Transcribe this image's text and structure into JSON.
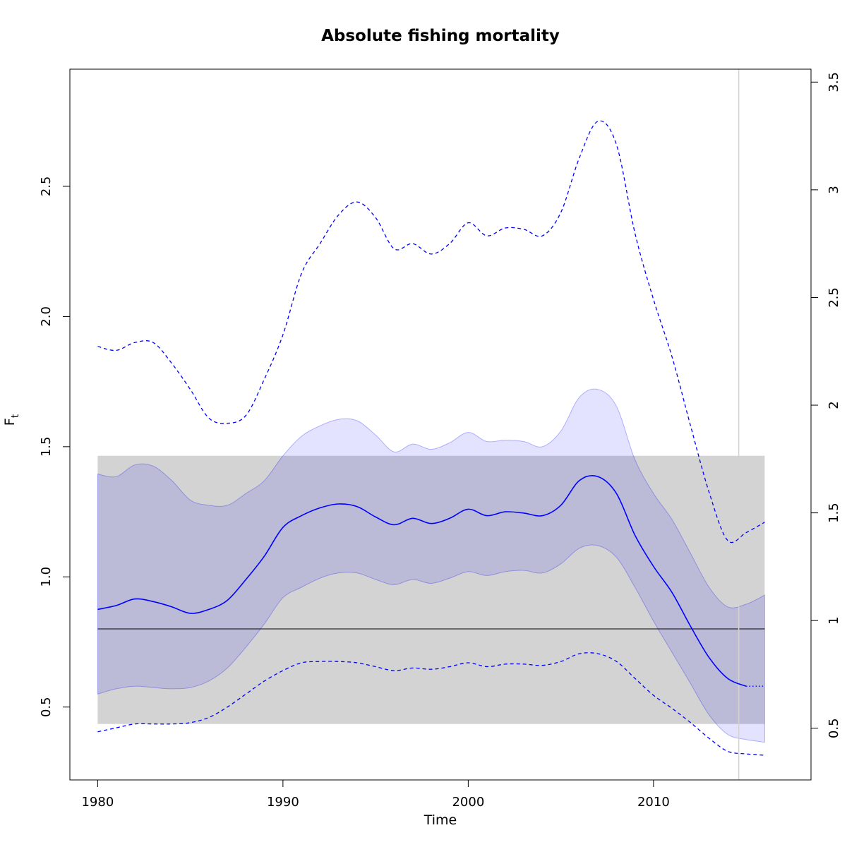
{
  "chart_data": {
    "type": "line",
    "title": "Absolute fishing mortality",
    "xlabel": "Time",
    "ylabel_main": "F",
    "ylabel_sub": "t",
    "xlim": [
      1978.5,
      2018.5
    ],
    "ylim_left": [
      0.22,
      2.95
    ],
    "ylim_right": [
      0.26,
      3.56
    ],
    "xticks": [
      1980,
      1990,
      2000,
      2010
    ],
    "yticks_left": [
      0.5,
      1.0,
      1.5,
      2.0,
      2.5
    ],
    "yticks_left_labels": [
      "0.5",
      "1.0",
      "1.5",
      "2.0",
      "2.5"
    ],
    "yticks_right": [
      0.5,
      1,
      1.5,
      2,
      2.5,
      3,
      3.5
    ],
    "yticks_right_labels": [
      "0.5",
      "1",
      "1.5",
      "2",
      "2.5",
      "3",
      "3.5"
    ],
    "reference_line_y": 0.8,
    "reference_band": {
      "x": [
        1980,
        2016
      ],
      "y": [
        0.435,
        1.465
      ]
    },
    "vertical_line_x": 2014.6,
    "estimate_end_x": 2015,
    "x": [
      1980,
      1981,
      1982,
      1983,
      1984,
      1985,
      1986,
      1987,
      1988,
      1989,
      1990,
      1991,
      1992,
      1993,
      1994,
      1995,
      1996,
      1997,
      1998,
      1999,
      2000,
      2001,
      2002,
      2003,
      2004,
      2005,
      2006,
      2007,
      2008,
      2009,
      2010,
      2011,
      2012,
      2013,
      2014,
      2015,
      2016
    ],
    "series": [
      {
        "role": "estimate",
        "values": [
          0.875,
          0.89,
          0.915,
          0.905,
          0.885,
          0.86,
          0.875,
          0.91,
          0.99,
          1.08,
          1.19,
          1.235,
          1.265,
          1.28,
          1.27,
          1.23,
          1.2,
          1.225,
          1.205,
          1.225,
          1.26,
          1.235,
          1.25,
          1.245,
          1.235,
          1.275,
          1.37,
          1.385,
          1.32,
          1.16,
          1.04,
          0.94,
          0.81,
          0.69,
          0.61,
          0.58,
          0.58
        ]
      },
      {
        "role": "ci_upper",
        "values": [
          1.395,
          1.385,
          1.43,
          1.425,
          1.37,
          1.295,
          1.275,
          1.275,
          1.32,
          1.37,
          1.465,
          1.54,
          1.58,
          1.605,
          1.6,
          1.545,
          1.48,
          1.51,
          1.49,
          1.515,
          1.555,
          1.52,
          1.525,
          1.52,
          1.5,
          1.56,
          1.69,
          1.72,
          1.655,
          1.45,
          1.32,
          1.22,
          1.09,
          0.96,
          0.885,
          0.895,
          0.93
        ]
      },
      {
        "role": "ci_lower",
        "values": [
          0.55,
          0.57,
          0.58,
          0.575,
          0.57,
          0.575,
          0.6,
          0.65,
          0.73,
          0.82,
          0.92,
          0.96,
          0.995,
          1.015,
          1.015,
          0.99,
          0.97,
          0.99,
          0.975,
          0.995,
          1.02,
          1.005,
          1.02,
          1.025,
          1.015,
          1.05,
          1.11,
          1.12,
          1.075,
          0.96,
          0.83,
          0.71,
          0.59,
          0.47,
          0.395,
          0.375,
          0.365
        ]
      },
      {
        "role": "upper_dashed",
        "values": [
          1.885,
          1.87,
          1.9,
          1.9,
          1.82,
          1.72,
          1.61,
          1.59,
          1.62,
          1.76,
          1.93,
          2.165,
          2.28,
          2.39,
          2.44,
          2.38,
          2.26,
          2.28,
          2.24,
          2.28,
          2.36,
          2.31,
          2.34,
          2.335,
          2.31,
          2.4,
          2.61,
          2.75,
          2.66,
          2.32,
          2.065,
          1.845,
          1.58,
          1.325,
          1.14,
          1.17,
          1.21
        ]
      },
      {
        "role": "lower_dashed",
        "values": [
          0.405,
          0.42,
          0.435,
          0.435,
          0.435,
          0.44,
          0.46,
          0.5,
          0.55,
          0.6,
          0.64,
          0.67,
          0.675,
          0.675,
          0.67,
          0.655,
          0.64,
          0.65,
          0.645,
          0.655,
          0.67,
          0.655,
          0.665,
          0.665,
          0.66,
          0.675,
          0.705,
          0.705,
          0.675,
          0.61,
          0.545,
          0.495,
          0.44,
          0.38,
          0.33,
          0.32,
          0.315
        ]
      }
    ],
    "colors": {
      "band": "#d3d3d3",
      "ci_fill": "rgba(0,0,255,0.11)",
      "ci_edge": "rgba(0,0,255,0.28)",
      "line": "#0000ff",
      "ref_line": "#000000",
      "vline": "#d3d3d3"
    }
  }
}
